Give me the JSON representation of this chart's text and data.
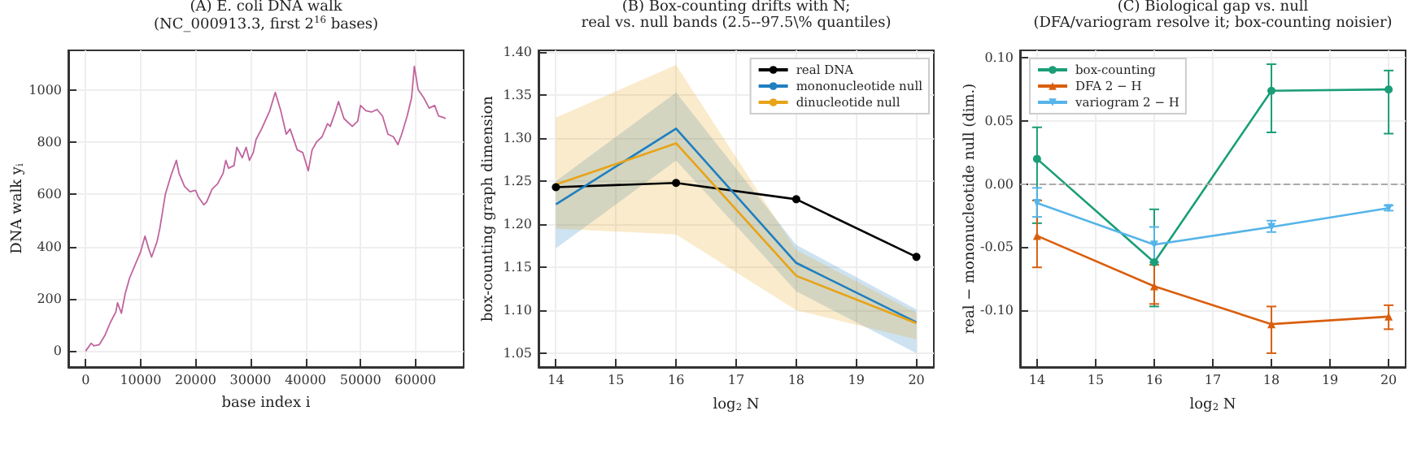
{
  "chart_data": [
    {
      "type": "line",
      "title": "(A) E. coli DNA walk",
      "subtitle": "(NC_000913.3, first 2$^{16}$ bases)",
      "xlabel": "base index i",
      "ylabel": "DNA walk y$_{i}$",
      "xlim": [
        -3150,
        68770
      ],
      "xticks": [
        0,
        10000,
        20000,
        30000,
        40000,
        50000,
        60000
      ],
      "ylim": [
        -61,
        1151
      ],
      "yticks": [
        0,
        200,
        400,
        600,
        800,
        1000
      ],
      "grid": true,
      "legend": false,
      "marker": "none",
      "series": [
        {
          "color": "#c0649e",
          "x": [
            0,
            1000,
            1500,
            2500,
            3500,
            4500,
            5500,
            5800,
            6500,
            7200,
            8000,
            9000,
            10000,
            10800,
            11500,
            12000,
            13000,
            13500,
            14500,
            15500,
            16500,
            17000,
            18000,
            19000,
            20000,
            20500,
            21500,
            22000,
            23000,
            24000,
            25000,
            25500,
            26000,
            27000,
            27500,
            28500,
            29200,
            29800,
            30500,
            31000,
            32000,
            33500,
            34500,
            35500,
            36500,
            37200,
            38500,
            39500,
            40500,
            41200,
            42000,
            43000,
            44000,
            44500,
            45500,
            46000,
            47000,
            48500,
            49500,
            50000,
            51000,
            52000,
            53000,
            54000,
            55000,
            56000,
            56800,
            57500,
            58500,
            59300,
            59800,
            60500,
            61500,
            62500,
            63500,
            64200,
            65000,
            65500
          ],
          "values": [
            0,
            30,
            20,
            25,
            60,
            110,
            150,
            185,
            145,
            220,
            280,
            330,
            380,
            440,
            390,
            360,
            420,
            470,
            600,
            670,
            730,
            680,
            630,
            610,
            615,
            590,
            560,
            570,
            620,
            640,
            680,
            730,
            700,
            710,
            780,
            740,
            780,
            730,
            760,
            810,
            850,
            920,
            990,
            920,
            830,
            850,
            770,
            760,
            690,
            770,
            800,
            820,
            870,
            860,
            920,
            955,
            890,
            860,
            880,
            940,
            920,
            915,
            925,
            900,
            830,
            820,
            790,
            830,
            900,
            970,
            1090,
            1000,
            970,
            930,
            940,
            900,
            895,
            890
          ]
        }
      ]
    },
    {
      "type": "line",
      "title": "(B) Box-counting drifts with N;",
      "subtitle": "real vs. null bands (2.5--97.5\\% quantiles)",
      "xlabel": "log$_{2}$ N",
      "ylabel": "box-counting graph dimension",
      "x": [
        14,
        16,
        18,
        20
      ],
      "xlim": [
        13.71,
        20.29
      ],
      "xticks": [
        14,
        15,
        16,
        17,
        18,
        19,
        20
      ],
      "ylim": [
        1.034,
        1.402
      ],
      "yticks": [
        1.05,
        {
          "value": 1.1,
          "label": "1.10"
        },
        1.15,
        {
          "value": 1.2,
          "label": "1.20"
        },
        1.25,
        {
          "value": 1.3,
          "label": "1.30"
        },
        1.35,
        {
          "value": 1.4,
          "label": "1.40"
        }
      ],
      "grid": true,
      "legend": "top right",
      "series": [
        {
          "name": "real DNA",
          "color": "#000000",
          "marker": "circle",
          "values": [
            1.243,
            1.248,
            1.229,
            1.162
          ]
        },
        {
          "name": "mononucleotide null",
          "color": "#1f7fc0",
          "marker": "none",
          "values": [
            1.223,
            1.311,
            1.155,
            1.086
          ],
          "lower": [
            1.172,
            1.274,
            1.122,
            1.05
          ],
          "upper": [
            1.25,
            1.353,
            1.176,
            1.101
          ]
        },
        {
          "name": "dinucleotide null",
          "color": "#e8a317",
          "marker": "none",
          "values": [
            1.246,
            1.294,
            1.14,
            1.085
          ],
          "lower": [
            1.195,
            1.188,
            1.1,
            1.066
          ],
          "upper": [
            1.324,
            1.385,
            1.17,
            1.097
          ]
        }
      ]
    },
    {
      "type": "line",
      "title": "(C) Biological gap vs. null",
      "subtitle": "(DFA/variogram resolve it; box-counting noisier)",
      "xlabel": "log$_{2}$ N",
      "ylabel": "real − mononucleotide null (dim.)",
      "x": [
        14,
        16,
        18,
        20
      ],
      "xlim": [
        13.71,
        20.29
      ],
      "xticks": [
        14,
        15,
        16,
        17,
        18,
        19,
        20
      ],
      "ylim": [
        -0.145,
        0.106
      ],
      "yticks": [
        {
          "value": -0.1,
          "label": "-0.10"
        },
        {
          "value": -0.05,
          "label": "-0.05"
        },
        {
          "value": 0,
          "label": "0.00"
        },
        {
          "value": 0.05,
          "label": "0.05"
        },
        {
          "value": 0.1,
          "label": "0.10"
        }
      ],
      "grid": true,
      "legend": "top left",
      "ref_lines": [
        {
          "axis": "y",
          "value": 0,
          "color": "#aaaaaa",
          "line_style": "dashed"
        }
      ],
      "series": [
        {
          "name": "box-counting",
          "color": "#1a9e77",
          "marker": "circle",
          "values": [
            0.02,
            -0.062,
            0.074,
            0.075
          ],
          "errors": [
            [
              -0.031,
              0.045
            ],
            [
              -0.097,
              -0.02
            ],
            [
              0.041,
              0.095
            ],
            [
              0.04,
              0.09
            ]
          ]
        },
        {
          "name": "DFA 2 − H",
          "color": "#d95f0e",
          "marker": "triangle",
          "values": [
            -0.041,
            -0.081,
            -0.111,
            -0.105
          ],
          "errors": [
            [
              -0.066,
              -0.013
            ],
            [
              -0.095,
              -0.064
            ],
            [
              -0.134,
              -0.097
            ],
            [
              -0.115,
              -0.096
            ]
          ]
        },
        {
          "name": "variogram 2 − H",
          "color": "#56b4e9",
          "marker": "triangle_down",
          "values": [
            -0.015,
            -0.048,
            -0.034,
            -0.019
          ],
          "errors": [
            [
              -0.026,
              -0.003
            ],
            [
              -0.062,
              -0.034
            ],
            [
              -0.038,
              -0.029
            ],
            [
              -0.021,
              -0.017
            ]
          ]
        }
      ]
    }
  ]
}
